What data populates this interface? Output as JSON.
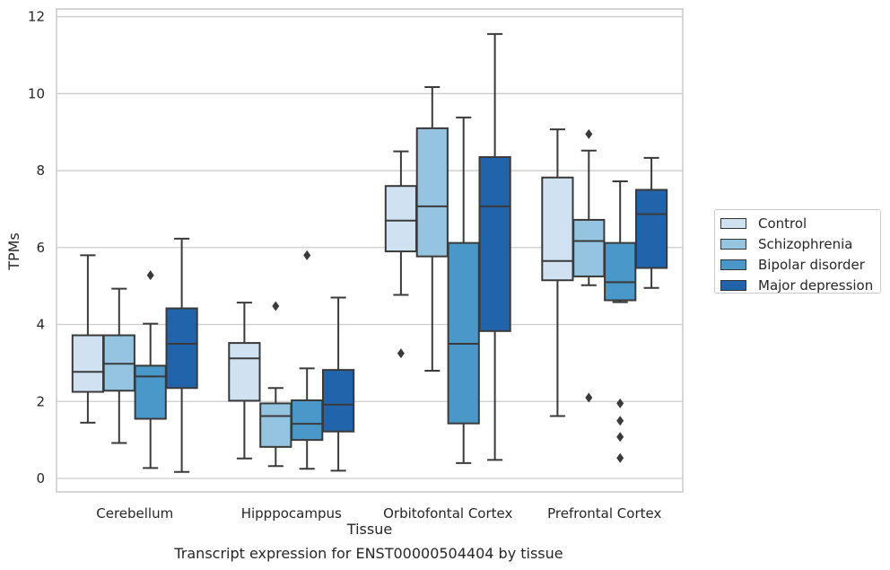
{
  "chart_data": {
    "type": "boxplot",
    "xlabel": "Tissue",
    "ylabel": "TPMs",
    "ylim": [
      -0.35,
      12.2
    ],
    "yticks": [
      0,
      2,
      4,
      6,
      8,
      10,
      12
    ],
    "grid": "horizontal",
    "legend_position": "right",
    "categories": [
      "Cerebellum",
      "Hipppocampus",
      "Orbitofontal Cortex",
      "Prefrontal Cortex"
    ],
    "series": [
      {
        "name": "Control",
        "color": "#d0e1f2",
        "boxes": [
          {
            "whisker_low": 1.45,
            "q1": 2.25,
            "median": 2.77,
            "q3": 3.72,
            "whisker_high": 5.8,
            "outliers": []
          },
          {
            "whisker_low": 0.52,
            "q1": 2.02,
            "median": 3.12,
            "q3": 3.52,
            "whisker_high": 4.57,
            "outliers": []
          },
          {
            "whisker_low": 4.77,
            "q1": 5.9,
            "median": 6.7,
            "q3": 7.6,
            "whisker_high": 8.5,
            "outliers": [
              3.25
            ]
          },
          {
            "whisker_low": 1.62,
            "q1": 5.15,
            "median": 5.65,
            "q3": 7.82,
            "whisker_high": 9.07,
            "outliers": []
          }
        ]
      },
      {
        "name": "Schizophrenia",
        "color": "#94c4df",
        "boxes": [
          {
            "whisker_low": 0.92,
            "q1": 2.28,
            "median": 2.98,
            "q3": 3.72,
            "whisker_high": 4.93,
            "outliers": []
          },
          {
            "whisker_low": 0.32,
            "q1": 0.82,
            "median": 1.62,
            "q3": 1.95,
            "whisker_high": 2.35,
            "outliers": [
              4.48
            ]
          },
          {
            "whisker_low": 2.8,
            "q1": 5.77,
            "median": 7.07,
            "q3": 9.1,
            "whisker_high": 10.17,
            "outliers": []
          },
          {
            "whisker_low": 5.02,
            "q1": 5.25,
            "median": 6.17,
            "q3": 6.72,
            "whisker_high": 8.52,
            "outliers": [
              8.95,
              2.1
            ]
          }
        ]
      },
      {
        "name": "Bipolar disorder",
        "color": "#4a98c9",
        "boxes": [
          {
            "whisker_low": 0.27,
            "q1": 1.55,
            "median": 2.65,
            "q3": 2.93,
            "whisker_high": 4.02,
            "outliers": [
              5.28
            ]
          },
          {
            "whisker_low": 0.25,
            "q1": 1.0,
            "median": 1.42,
            "q3": 2.03,
            "whisker_high": 2.86,
            "outliers": [
              5.8
            ]
          },
          {
            "whisker_low": 0.4,
            "q1": 1.43,
            "median": 3.5,
            "q3": 6.12,
            "whisker_high": 9.38,
            "outliers": []
          },
          {
            "whisker_low": 4.58,
            "q1": 4.63,
            "median": 5.1,
            "q3": 6.12,
            "whisker_high": 7.72,
            "outliers": [
              1.95,
              1.5,
              1.08,
              0.53
            ]
          }
        ]
      },
      {
        "name": "Major depression",
        "color": "#2164ab",
        "boxes": [
          {
            "whisker_low": 0.17,
            "q1": 2.35,
            "median": 3.5,
            "q3": 4.42,
            "whisker_high": 6.23,
            "outliers": []
          },
          {
            "whisker_low": 0.2,
            "q1": 1.22,
            "median": 1.92,
            "q3": 2.82,
            "whisker_high": 4.7,
            "outliers": []
          },
          {
            "whisker_low": 0.48,
            "q1": 3.83,
            "median": 7.07,
            "q3": 8.35,
            "whisker_high": 11.55,
            "outliers": []
          },
          {
            "whisker_low": 4.95,
            "q1": 5.47,
            "median": 6.87,
            "q3": 7.5,
            "whisker_high": 8.33,
            "outliers": []
          }
        ]
      }
    ]
  },
  "caption": "Transcript expression for ENST00000504404 by tissue"
}
